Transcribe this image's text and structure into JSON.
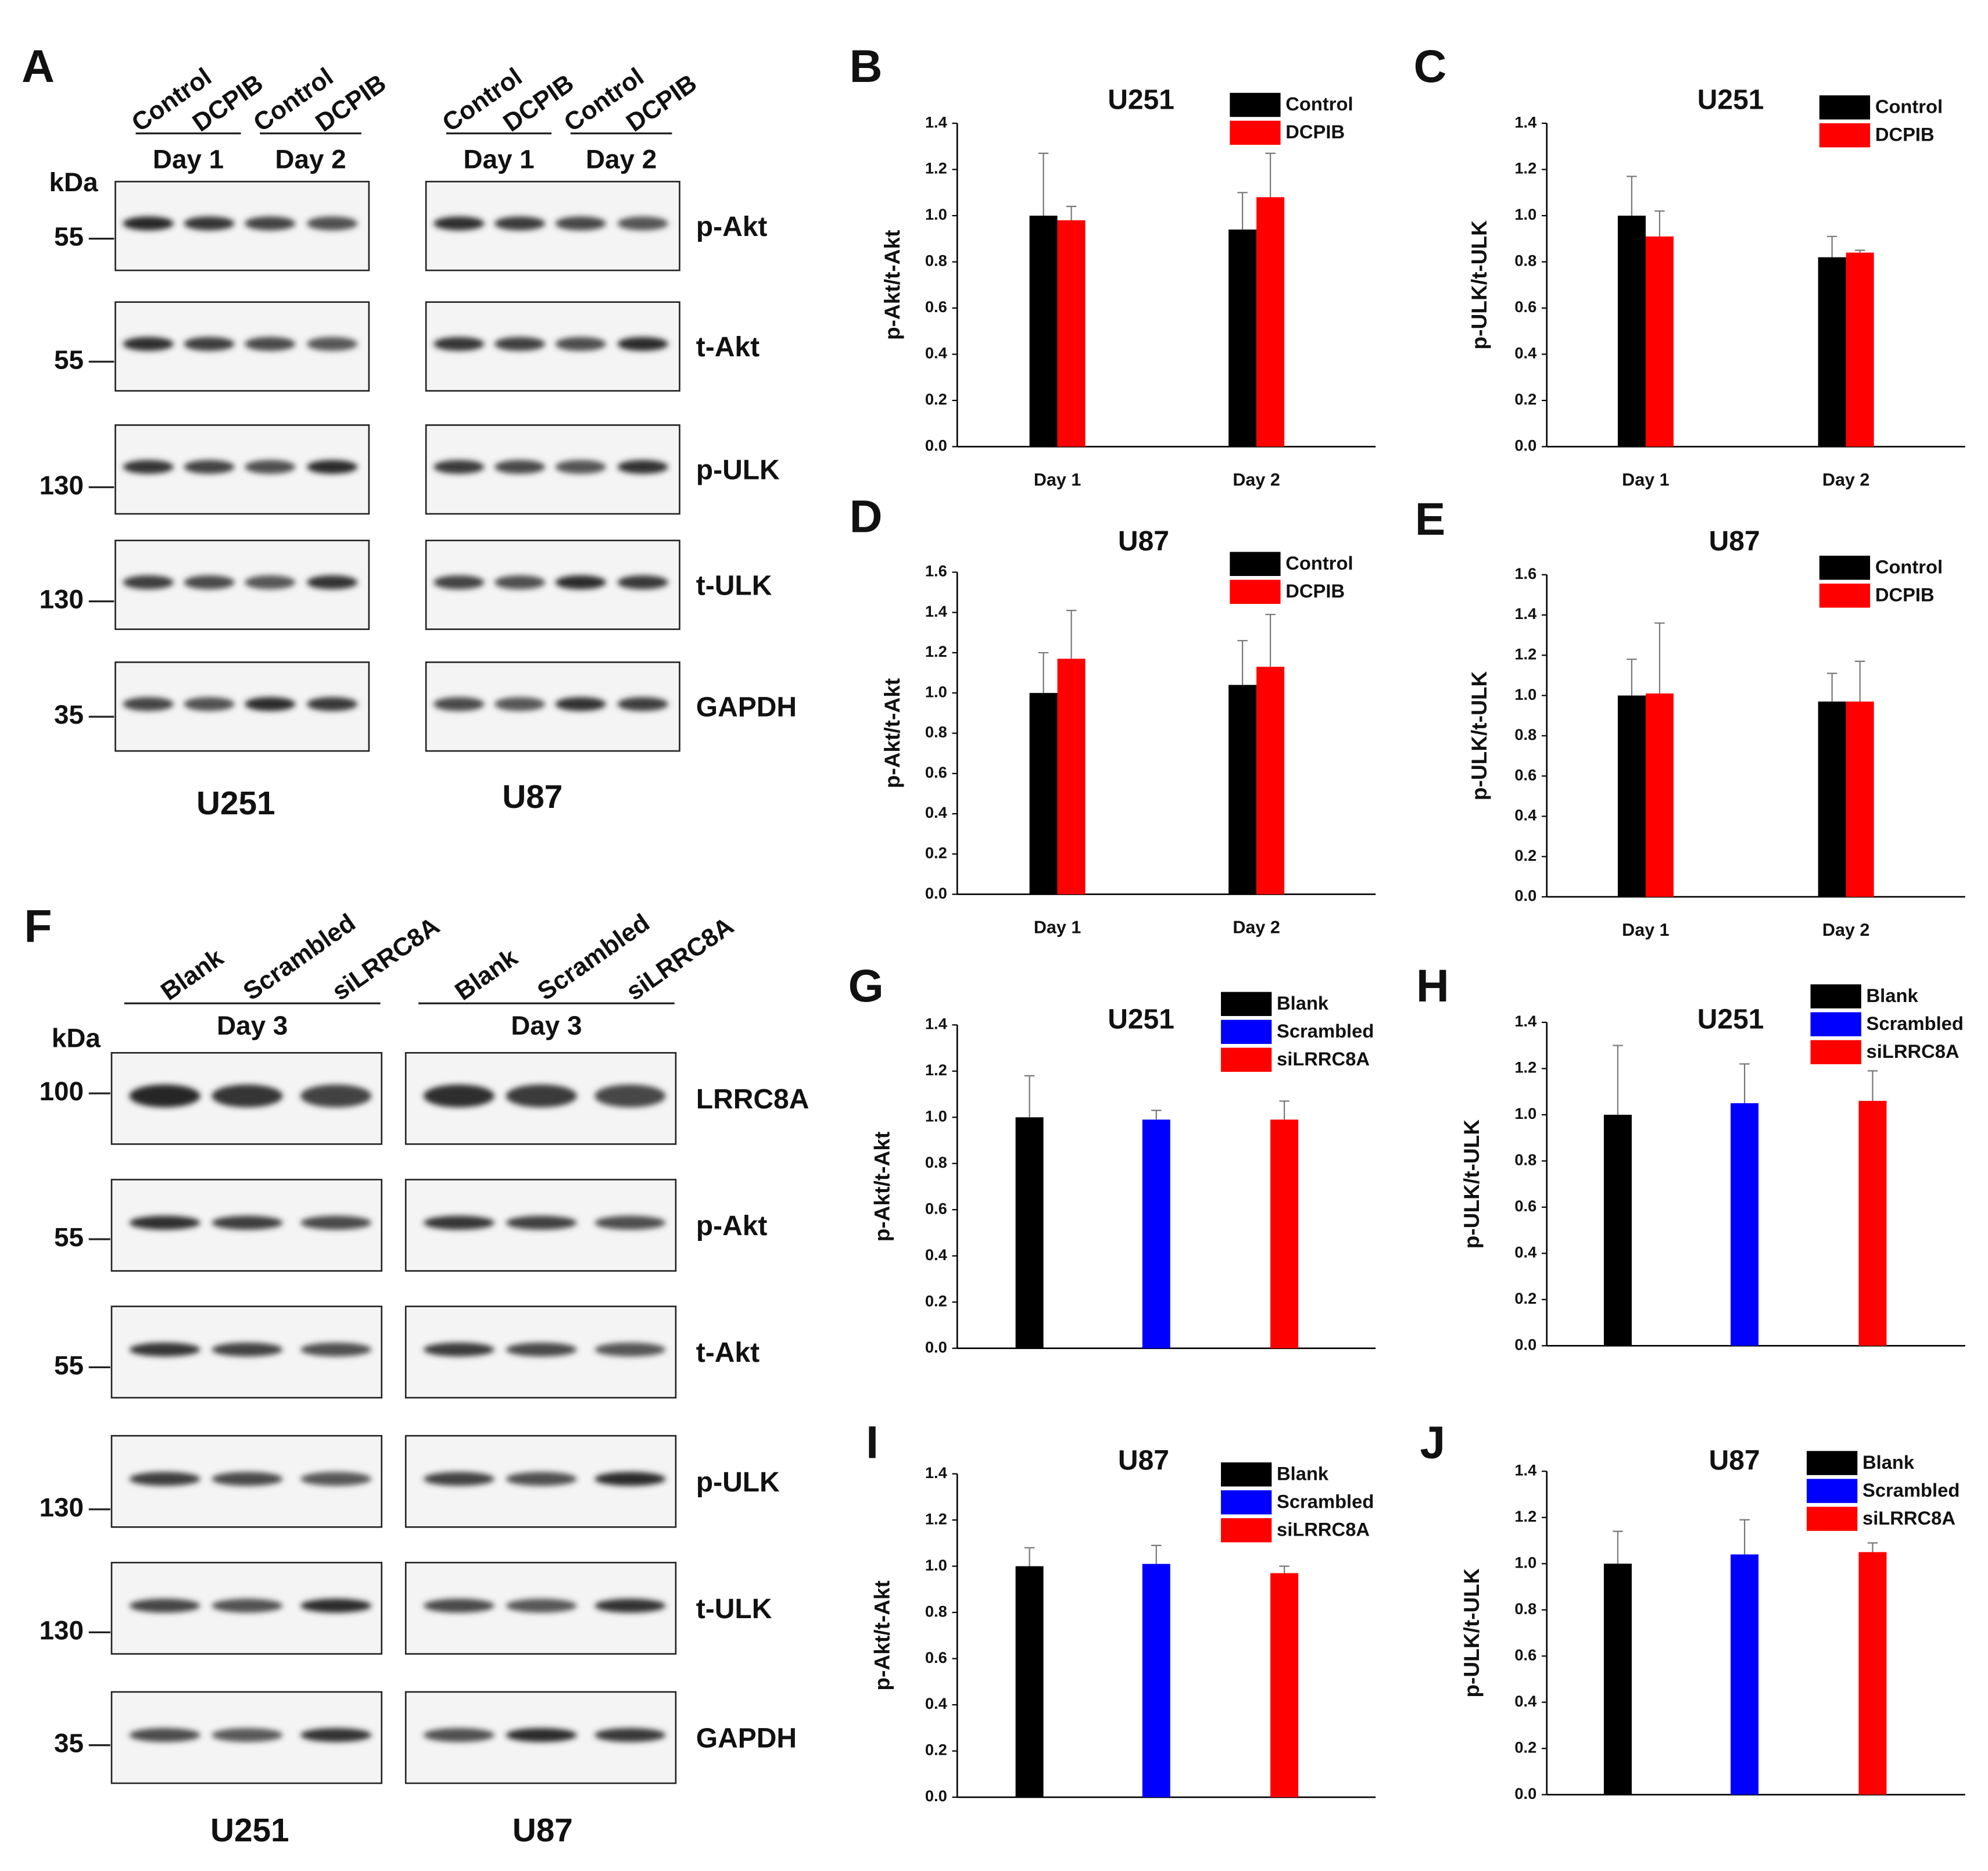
{
  "blots": [
    {
      "panel": "A",
      "kda": "kDa",
      "markers": [
        55,
        55,
        130,
        130,
        35
      ],
      "rows": [
        "p-Akt",
        "t-Akt",
        "p-ULK",
        "t-ULK",
        "GAPDH"
      ],
      "cells": [
        {
          "name": "U251",
          "lanes": [
            "Control",
            "DCPIB",
            "Control",
            "DCPIB"
          ],
          "days": [
            "Day 1",
            "Day 2"
          ]
        },
        {
          "name": "U87",
          "lanes": [
            "Control",
            "DCPIB",
            "Control",
            "DCPIB"
          ],
          "days": [
            "Day 1",
            "Day 2"
          ]
        }
      ]
    },
    {
      "panel": "F",
      "kda": "kDa",
      "markers": [
        100,
        55,
        55,
        130,
        130,
        35
      ],
      "rows": [
        "LRRC8A",
        "p-Akt",
        "t-Akt",
        "p-ULK",
        "t-ULK",
        "GAPDH"
      ],
      "cells": [
        {
          "name": "U251",
          "lanes": [
            "Blank",
            "Scrambled",
            "siLRRC8A"
          ],
          "days": [
            "Day 3"
          ]
        },
        {
          "name": "U87",
          "lanes": [
            "Blank",
            "Scrambled",
            "siLRRC8A"
          ],
          "days": [
            "Day 3"
          ]
        }
      ]
    }
  ],
  "chart_data": [
    {
      "type": "bar",
      "panel": "B",
      "title": "U251",
      "y_label": "p-Akt/t-Akt",
      "categories": [
        "Day 1",
        "Day 2"
      ],
      "series": [
        {
          "name": "Control",
          "color": "#000000",
          "values": [
            1.0,
            0.94
          ],
          "errors": [
            0.27,
            0.16
          ]
        },
        {
          "name": "DCPIB",
          "color": "#ff0000",
          "values": [
            0.98,
            1.08
          ],
          "errors": [
            0.06,
            0.19
          ]
        }
      ],
      "ylim": [
        0,
        1.4
      ],
      "yticks": [
        {
          "value": 0,
          "label": "0.0"
        },
        0.2,
        0.4,
        0.6,
        0.8,
        {
          "value": 1,
          "label": "1.0"
        },
        1.2,
        1.4
      ]
    },
    {
      "type": "bar",
      "panel": "C",
      "title": "U251",
      "y_label": "p-ULK/t-ULK",
      "categories": [
        "Day 1",
        "Day 2"
      ],
      "series": [
        {
          "name": "Control",
          "color": "#000000",
          "values": [
            1.0,
            0.82
          ],
          "errors": [
            0.17,
            0.09
          ]
        },
        {
          "name": "DCPIB",
          "color": "#ff0000",
          "values": [
            0.91,
            0.84
          ],
          "errors": [
            0.11,
            0.01
          ]
        }
      ],
      "ylim": [
        0,
        1.4
      ],
      "yticks": [
        {
          "value": 0,
          "label": "0.0"
        },
        0.2,
        0.4,
        0.6,
        0.8,
        {
          "value": 1,
          "label": "1.0"
        },
        1.2,
        1.4
      ]
    },
    {
      "type": "bar",
      "panel": "D",
      "title": "U87",
      "y_label": "p-Akt/t-Akt",
      "categories": [
        "Day 1",
        "Day 2"
      ],
      "series": [
        {
          "name": "Control",
          "color": "#000000",
          "values": [
            1.0,
            1.04
          ],
          "errors": [
            0.2,
            0.22
          ]
        },
        {
          "name": "DCPIB",
          "color": "#ff0000",
          "values": [
            1.17,
            1.13
          ],
          "errors": [
            0.24,
            0.26
          ]
        }
      ],
      "ylim": [
        0,
        1.6
      ],
      "yticks": [
        {
          "value": 0,
          "label": "0.0"
        },
        0.2,
        0.4,
        0.6,
        0.8,
        {
          "value": 1,
          "label": "1.0"
        },
        1.2,
        1.4,
        1.6
      ]
    },
    {
      "type": "bar",
      "panel": "E",
      "title": "U87",
      "y_label": "p-ULK/t-ULK",
      "categories": [
        "Day 1",
        "Day 2"
      ],
      "series": [
        {
          "name": "Control",
          "color": "#000000",
          "values": [
            1.0,
            0.97
          ],
          "errors": [
            0.18,
            0.14
          ]
        },
        {
          "name": "DCPIB",
          "color": "#ff0000",
          "values": [
            1.01,
            0.97
          ],
          "errors": [
            0.35,
            0.2
          ]
        }
      ],
      "ylim": [
        0,
        1.6
      ],
      "yticks": [
        {
          "value": 0,
          "label": "0.0"
        },
        0.2,
        0.4,
        0.6,
        0.8,
        {
          "value": 1,
          "label": "1.0"
        },
        1.2,
        1.4,
        1.6
      ]
    },
    {
      "type": "bar",
      "panel": "G",
      "title": "U251",
      "y_label": "p-Akt/t-Akt",
      "categories": [
        null,
        null,
        null
      ],
      "series": [
        {
          "name": "Blank",
          "color": "#000000",
          "values": [
            1.0,
            null,
            null
          ],
          "errors": [
            0.18,
            null,
            null
          ]
        },
        {
          "name": "Scrambled",
          "color": "#0000ff",
          "values": [
            null,
            0.99,
            null
          ],
          "errors": [
            null,
            0.04,
            null
          ]
        },
        {
          "name": "siLRRC8A",
          "color": "#ff0000",
          "values": [
            null,
            null,
            0.99
          ],
          "errors": [
            null,
            null,
            0.08
          ]
        }
      ],
      "ylim": [
        0,
        1.4
      ],
      "yticks": [
        {
          "value": 0,
          "label": "0.0"
        },
        0.2,
        0.4,
        0.6,
        0.8,
        {
          "value": 1,
          "label": "1.0"
        },
        1.2,
        1.4
      ]
    },
    {
      "type": "bar",
      "panel": "H",
      "title": "U251",
      "y_label": "p-ULK/t-ULK",
      "categories": [
        null,
        null,
        null
      ],
      "series": [
        {
          "name": "Blank",
          "color": "#000000",
          "values": [
            1.0,
            null,
            null
          ],
          "errors": [
            0.3,
            null,
            null
          ]
        },
        {
          "name": "Scrambled",
          "color": "#0000ff",
          "values": [
            null,
            1.05,
            null
          ],
          "errors": [
            null,
            0.17,
            null
          ]
        },
        {
          "name": "siLRRC8A",
          "color": "#ff0000",
          "values": [
            null,
            null,
            1.06
          ],
          "errors": [
            null,
            null,
            0.13
          ]
        }
      ],
      "ylim": [
        0,
        1.4
      ],
      "yticks": [
        {
          "value": 0,
          "label": "0.0"
        },
        0.2,
        0.4,
        0.6,
        0.8,
        {
          "value": 1,
          "label": "1.0"
        },
        1.2,
        1.4
      ]
    },
    {
      "type": "bar",
      "panel": "I",
      "title": "U87",
      "y_label": "p-Akt/t-Akt",
      "categories": [
        null,
        null,
        null
      ],
      "series": [
        {
          "name": "Blank",
          "color": "#000000",
          "values": [
            1.0,
            null,
            null
          ],
          "errors": [
            0.08,
            null,
            null
          ]
        },
        {
          "name": "Scrambled",
          "color": "#0000ff",
          "values": [
            null,
            1.01,
            null
          ],
          "errors": [
            null,
            0.08,
            null
          ]
        },
        {
          "name": "siLRRC8A",
          "color": "#ff0000",
          "values": [
            null,
            null,
            0.97
          ],
          "errors": [
            null,
            null,
            0.03
          ]
        }
      ],
      "ylim": [
        0,
        1.4
      ],
      "yticks": [
        {
          "value": 0,
          "label": "0.0"
        },
        0.2,
        0.4,
        0.6,
        0.8,
        {
          "value": 1,
          "label": "1.0"
        },
        1.2,
        1.4
      ]
    },
    {
      "type": "bar",
      "panel": "J",
      "title": "U87",
      "y_label": "p-ULK/t-ULK",
      "categories": [
        null,
        null,
        null
      ],
      "series": [
        {
          "name": "Blank",
          "color": "#000000",
          "values": [
            1.0,
            null,
            null
          ],
          "errors": [
            0.14,
            null,
            null
          ]
        },
        {
          "name": "Scrambled",
          "color": "#0000ff",
          "values": [
            null,
            1.04,
            null
          ],
          "errors": [
            null,
            0.15,
            null
          ]
        },
        {
          "name": "siLRRC8A",
          "color": "#ff0000",
          "values": [
            null,
            null,
            1.05
          ],
          "errors": [
            null,
            null,
            0.04
          ]
        }
      ],
      "ylim": [
        0,
        1.4
      ],
      "yticks": [
        {
          "value": 0,
          "label": "0.0"
        },
        0.2,
        0.4,
        0.6,
        0.8,
        {
          "value": 1,
          "label": "1.0"
        },
        1.2,
        1.4
      ]
    }
  ]
}
